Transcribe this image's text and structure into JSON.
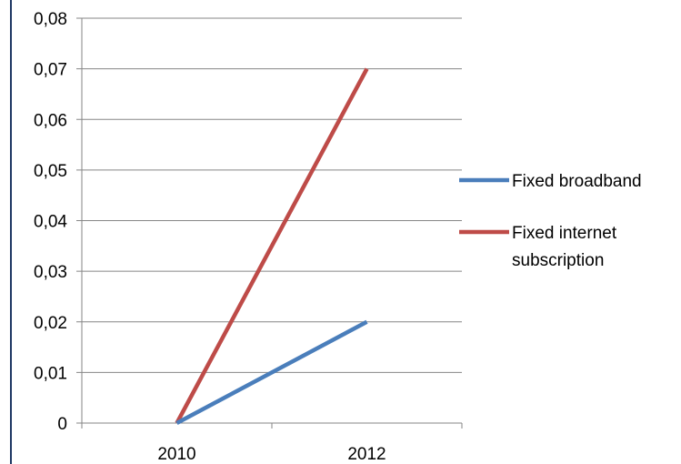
{
  "chart_data": {
    "type": "line",
    "x": [
      "2010",
      "2012"
    ],
    "series": [
      {
        "name": "Fixed broadband",
        "values": [
          0,
          0.02
        ],
        "color": "#4a7ebb"
      },
      {
        "name_lines": [
          "Fixed internet",
          "subscription"
        ],
        "values": [
          0,
          0.07
        ],
        "color": "#be4b48"
      }
    ],
    "yticks": [
      "0",
      "0,01",
      "0,02",
      "0,03",
      "0,04",
      "0,05",
      "0,06",
      "0,07",
      "0,08"
    ],
    "ylim": [
      0,
      0.08
    ],
    "grid": true,
    "legend_position": "right",
    "title": "",
    "xlabel": "",
    "ylabel": ""
  }
}
